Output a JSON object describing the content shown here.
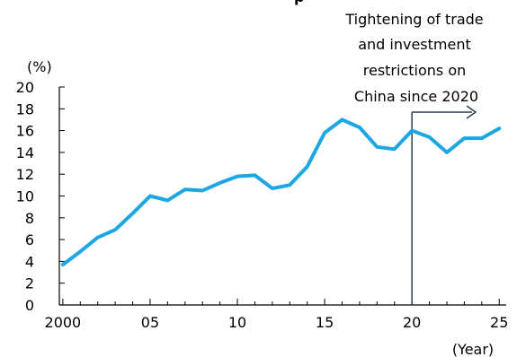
{
  "chart_data": {
    "type": "line",
    "title_fragment": "p",
    "unit_label": "(%)",
    "xlabel": "(Year)",
    "ylabel": "",
    "xlim": [
      1999.8,
      2025.4
    ],
    "ylim": [
      0,
      20
    ],
    "x_ticks": [
      2000,
      2005,
      2010,
      2015,
      2020,
      2025
    ],
    "x_tick_labels": [
      "2000",
      "05",
      "10",
      "15",
      "20",
      "25"
    ],
    "y_ticks": [
      0,
      2,
      4,
      6,
      8,
      10,
      12,
      14,
      16,
      18,
      20
    ],
    "grid": false,
    "series": [
      {
        "color": "#1CA6E3",
        "x": [
          2000,
          2001,
          2002,
          2003,
          2004,
          2005,
          2006,
          2007,
          2008,
          2009,
          2010,
          2011,
          2012,
          2013,
          2014,
          2015,
          2016,
          2017,
          2018,
          2019,
          2020,
          2021,
          2022,
          2023,
          2024,
          2025
        ],
        "values": [
          3.7,
          4.9,
          6.2,
          6.9,
          8.4,
          10.0,
          9.6,
          10.6,
          10.5,
          11.2,
          11.8,
          11.9,
          10.7,
          11.0,
          12.7,
          15.8,
          17.0,
          16.3,
          14.5,
          14.3,
          16.0,
          15.4,
          14.0,
          15.3,
          15.3,
          16.2
        ]
      }
    ],
    "annotation": {
      "x": 2020,
      "lines": [
        "Tightening of trade",
        "and investment",
        "restrictions on",
        "China since 2020"
      ]
    }
  }
}
